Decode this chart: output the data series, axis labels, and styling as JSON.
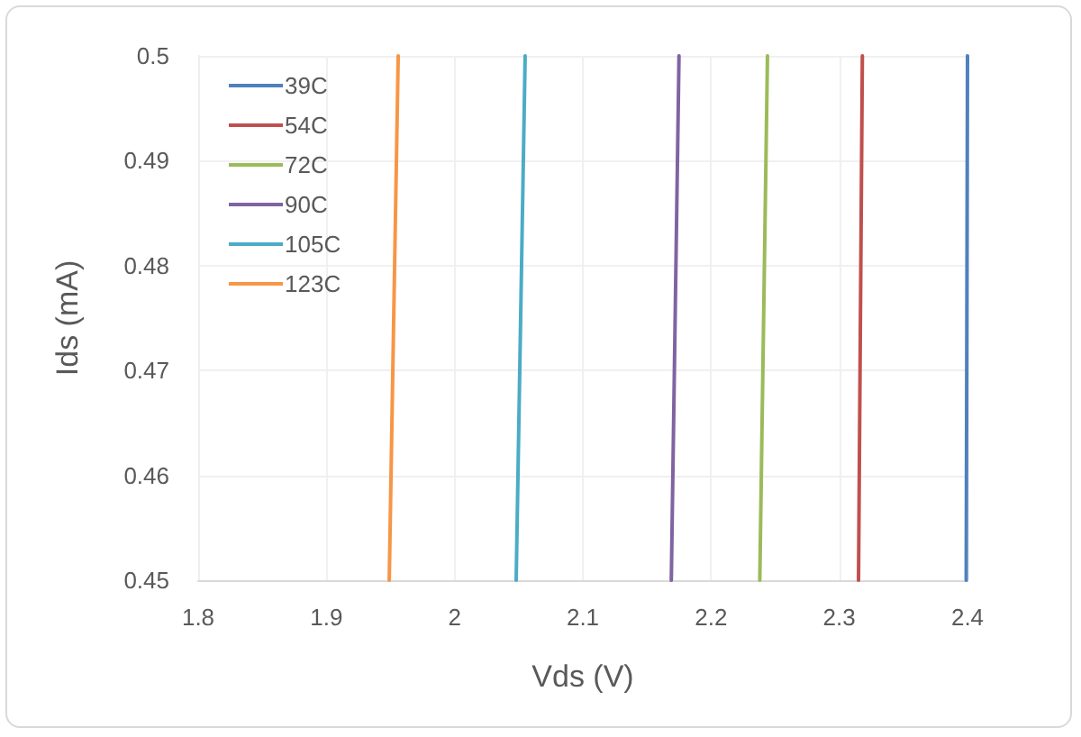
{
  "chart_data": {
    "type": "line",
    "xlabel": "Vds (V)",
    "ylabel": "Ids (mA)",
    "xlim": [
      1.8,
      2.4
    ],
    "xticks": [
      1.8,
      1.9,
      2,
      2.1,
      2.2,
      2.3,
      2.4
    ],
    "ylim": [
      0.45,
      0.5
    ],
    "yticks": [
      0.45,
      0.46,
      0.47,
      0.48,
      0.49,
      0.5
    ],
    "grid": true,
    "legend": "top left",
    "series": [
      {
        "name": "39C",
        "color": "#4f81bd",
        "x": [
          2.399,
          2.4
        ],
        "values": [
          0.45,
          0.5
        ]
      },
      {
        "name": "54C",
        "color": "#c0504d",
        "x": [
          2.315,
          2.318
        ],
        "values": [
          0.45,
          0.5
        ]
      },
      {
        "name": "72C",
        "color": "#9bbb59",
        "x": [
          2.238,
          2.244
        ],
        "values": [
          0.45,
          0.5
        ]
      },
      {
        "name": "90C",
        "color": "#8064a2",
        "x": [
          2.169,
          2.175
        ],
        "values": [
          0.45,
          0.5
        ]
      },
      {
        "name": "105C",
        "color": "#4bacc6",
        "x": [
          2.048,
          2.055
        ],
        "values": [
          0.45,
          0.5
        ]
      },
      {
        "name": "123C",
        "color": "#f79646",
        "x": [
          1.949,
          1.956
        ],
        "values": [
          0.45,
          0.5
        ]
      }
    ]
  }
}
